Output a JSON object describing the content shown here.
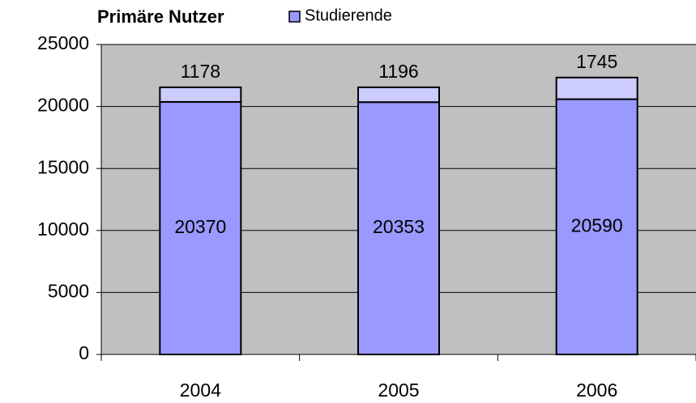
{
  "chart_data": {
    "type": "bar",
    "stacked": true,
    "title": "Primäre Nutzer",
    "categories": [
      "2004",
      "2005",
      "2006"
    ],
    "series": [
      {
        "name": "Studierende",
        "color": "#9999ff",
        "values": [
          20370,
          20353,
          20590
        ]
      },
      {
        "color": "#ccccff",
        "values": [
          1178,
          1196,
          1745
        ]
      }
    ],
    "ylim": [
      0,
      25000
    ],
    "yticks": [
      0,
      5000,
      10000,
      15000,
      20000,
      25000
    ],
    "grid": true,
    "plot_background": "#c0c0c0"
  }
}
